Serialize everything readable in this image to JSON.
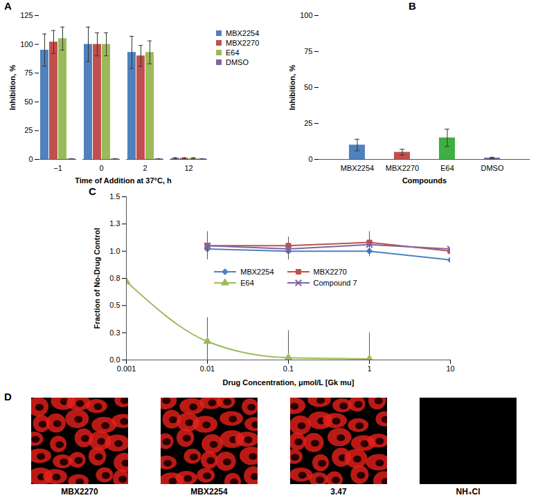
{
  "chart_data": [
    {
      "type": "bar",
      "title": "A",
      "x_label": "Time of Addition at 37°C, h",
      "y_label": "Inhibition, %",
      "categories": [
        "−1",
        "0",
        "2",
        "12"
      ],
      "series": [
        {
          "name": "MBX2254",
          "color": "#4f81bd",
          "values": [
            95,
            100,
            93,
            1
          ],
          "errors": [
            14,
            15,
            14,
            0.5
          ]
        },
        {
          "name": "MBX2270",
          "color": "#c0504d",
          "values": [
            102,
            100,
            90,
            1
          ],
          "errors": [
            10,
            10,
            9,
            0.5
          ]
        },
        {
          "name": "E64",
          "color": "#9bbb59",
          "values": [
            105,
            100,
            93,
            1
          ],
          "errors": [
            10,
            10,
            10,
            0.5
          ]
        },
        {
          "name": "DMSO",
          "color": "#8064a2",
          "values": [
            0.5,
            0.5,
            0.5,
            0.5
          ],
          "errors": [
            0,
            0,
            0,
            0
          ]
        }
      ],
      "ylim": [
        0,
        125
      ],
      "yticks": [
        0,
        25,
        50,
        75,
        100,
        125
      ],
      "legend": "right"
    },
    {
      "type": "bar",
      "title": "B",
      "x_label": "Compounds",
      "y_label": "Inhibition, %",
      "categories": [
        "MBX2254",
        "MBX2270",
        "E64",
        "DMSO"
      ],
      "values": [
        10,
        5,
        15,
        1
      ],
      "errors": [
        4,
        2,
        6,
        0.5
      ],
      "colors": [
        "#4f81bd",
        "#c0504d",
        "#3cb043",
        "#8064a2"
      ],
      "ylim": [
        0,
        100
      ],
      "yticks": [
        0,
        25,
        50,
        75,
        100
      ]
    },
    {
      "type": "line",
      "title": "C",
      "x_label": "Drug Concentration, μmol/L [Gk mu]",
      "y_label": "Fraction of No-Drug Control",
      "log": "x",
      "series": [
        {
          "name": "MBX2254",
          "color": "#4f81bd",
          "marker": "diamond",
          "line_style": "solid",
          "x": [
            0.01,
            0.1,
            1,
            10
          ],
          "values": [
            1.02,
            1.0,
            1.0,
            0.92
          ],
          "errors": [
            0.07,
            0.08,
            0.05,
            0
          ]
        },
        {
          "name": "MBX2270",
          "color": "#c0504d",
          "marker": "square",
          "line_style": "solid",
          "x": [
            0.01,
            0.1,
            1,
            10
          ],
          "values": [
            1.05,
            1.05,
            1.08,
            1.0
          ],
          "errors": [
            0.13,
            0.08,
            0.1,
            0.13
          ]
        },
        {
          "name": "E64",
          "color": "#9bbb59",
          "marker": "triangle",
          "line_style": "smooth",
          "x": [
            0.001,
            0.01,
            0.1,
            1
          ],
          "values": [
            0.72,
            0.17,
            0.02,
            0.01
          ],
          "errors": [
            0.18,
            0.22,
            0.25,
            0.24
          ]
        },
        {
          "name": "Compound 7",
          "color": "#8064a2",
          "marker": "x",
          "line_style": "solid",
          "x": [
            0.01,
            0.1,
            1,
            10
          ],
          "values": [
            1.05,
            1.02,
            1.06,
            1.02
          ],
          "errors": [
            0,
            0,
            0,
            0
          ]
        }
      ],
      "xlim": [
        0.001,
        10
      ],
      "xticks": [
        0.001,
        0.01,
        0.1,
        1,
        10
      ],
      "ylim": [
        0,
        1.5
      ],
      "yticks": [
        {
          "value": 0,
          "label": "0.0"
        },
        {
          "value": 0.25,
          "label": "0.3"
        },
        {
          "value": 0.5,
          "label": "0.5"
        },
        {
          "value": 0.75,
          "label": "0.8"
        },
        {
          "value": 1,
          "label": "1.0"
        },
        {
          "value": 1.25,
          "label": "1.3"
        },
        {
          "value": 1.5,
          "label": "1.5"
        }
      ],
      "legend": "center"
    }
  ],
  "panel_D": {
    "title": "D",
    "images": [
      {
        "label": "MBX2270",
        "signal": true
      },
      {
        "label": "MBX2254",
        "signal": true
      },
      {
        "label": "3.47",
        "signal": true
      },
      {
        "label": "NH₄Cl",
        "signal": false
      }
    ]
  }
}
